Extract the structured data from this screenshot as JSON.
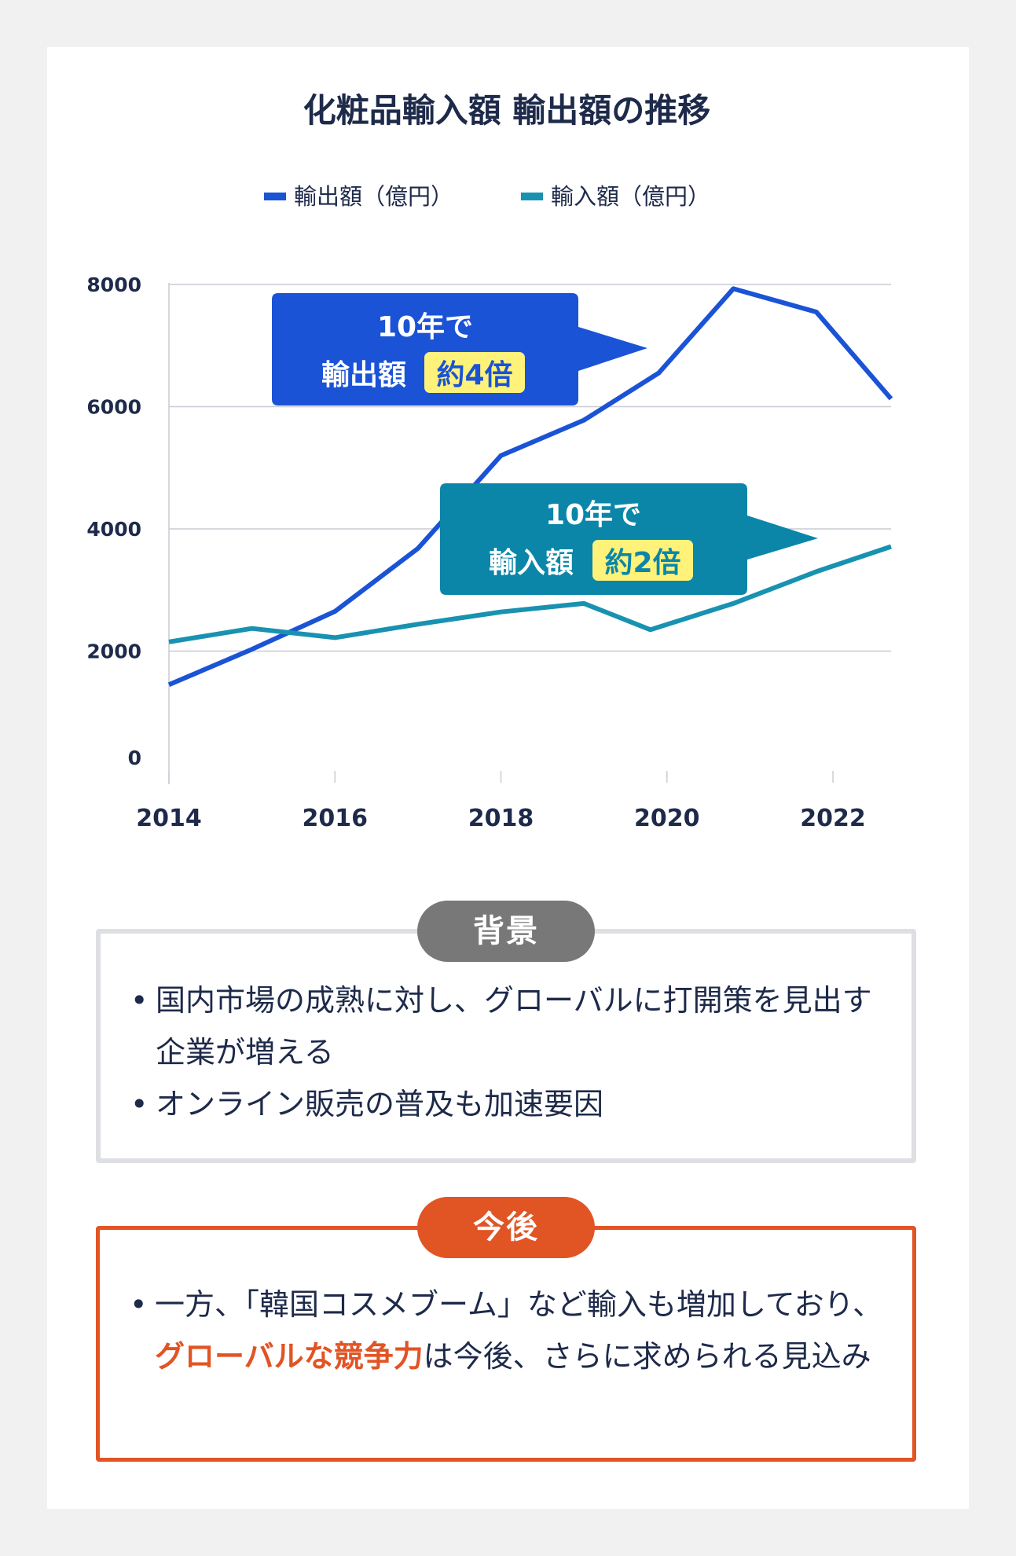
{
  "chart_data": {
    "type": "line",
    "title": "化粧品輸入額 輸出額の推移",
    "x": [
      2014,
      2015,
      2016,
      2017,
      2018,
      2019,
      2020,
      2021,
      2022,
      2023
    ],
    "xticks": [
      "2014",
      "2016",
      "2018",
      "2020",
      "2022"
    ],
    "xtick_values": [
      2014,
      2016,
      2018,
      2020,
      2022
    ],
    "yticks": [
      "0",
      "2000",
      "4000",
      "6000",
      "8000"
    ],
    "ytick_values": [
      0,
      2000,
      4000,
      6000,
      8000
    ],
    "ylim": [
      0,
      8000
    ],
    "xlim": [
      2014,
      2022.7
    ],
    "series": [
      {
        "name": "輸出額（億円）",
        "color": "#1a53d6",
        "x": [
          2014,
          2015,
          2016,
          2017,
          2018,
          2019,
          2019.9,
          2020.8,
          2021.8,
          2022.7
        ],
        "values": [
          1450,
          2030,
          2650,
          3680,
          5200,
          5780,
          6550,
          7930,
          7550,
          6130
        ]
      },
      {
        "name": "輸入額（億円）",
        "color": "#1892b0",
        "x": [
          2014,
          2015,
          2016,
          2017,
          2018,
          2019,
          2019.8,
          2020.8,
          2021.8,
          2022.7
        ],
        "values": [
          2150,
          2370,
          2220,
          2440,
          2640,
          2780,
          2350,
          2780,
          3300,
          3710
        ]
      }
    ],
    "annotations": [
      {
        "color": "#1a53d6",
        "line1": "10年で",
        "line2_prefix": "輸出額",
        "highlight": "約4倍"
      },
      {
        "color": "#0b86a8",
        "line1": "10年で",
        "line2_prefix": "輸入額",
        "highlight": "約2倍"
      }
    ],
    "highlight_color": "#fff27a"
  },
  "background": {
    "tag": "背景",
    "bullet": "•",
    "items": [
      "国内市場の成熟に対し、グローバルに打開策を見出す企業が増える",
      "オンライン販売の普及も加速要因"
    ]
  },
  "outlook": {
    "tag": "今後",
    "bullet": "•",
    "items": [
      {
        "text": "一方、「韓国コスメブーム」など輸入も増加しており、"
      },
      {
        "emphasis": "グローバルな競争力",
        "rest": "は今後、さらに求められる見込み"
      }
    ]
  }
}
